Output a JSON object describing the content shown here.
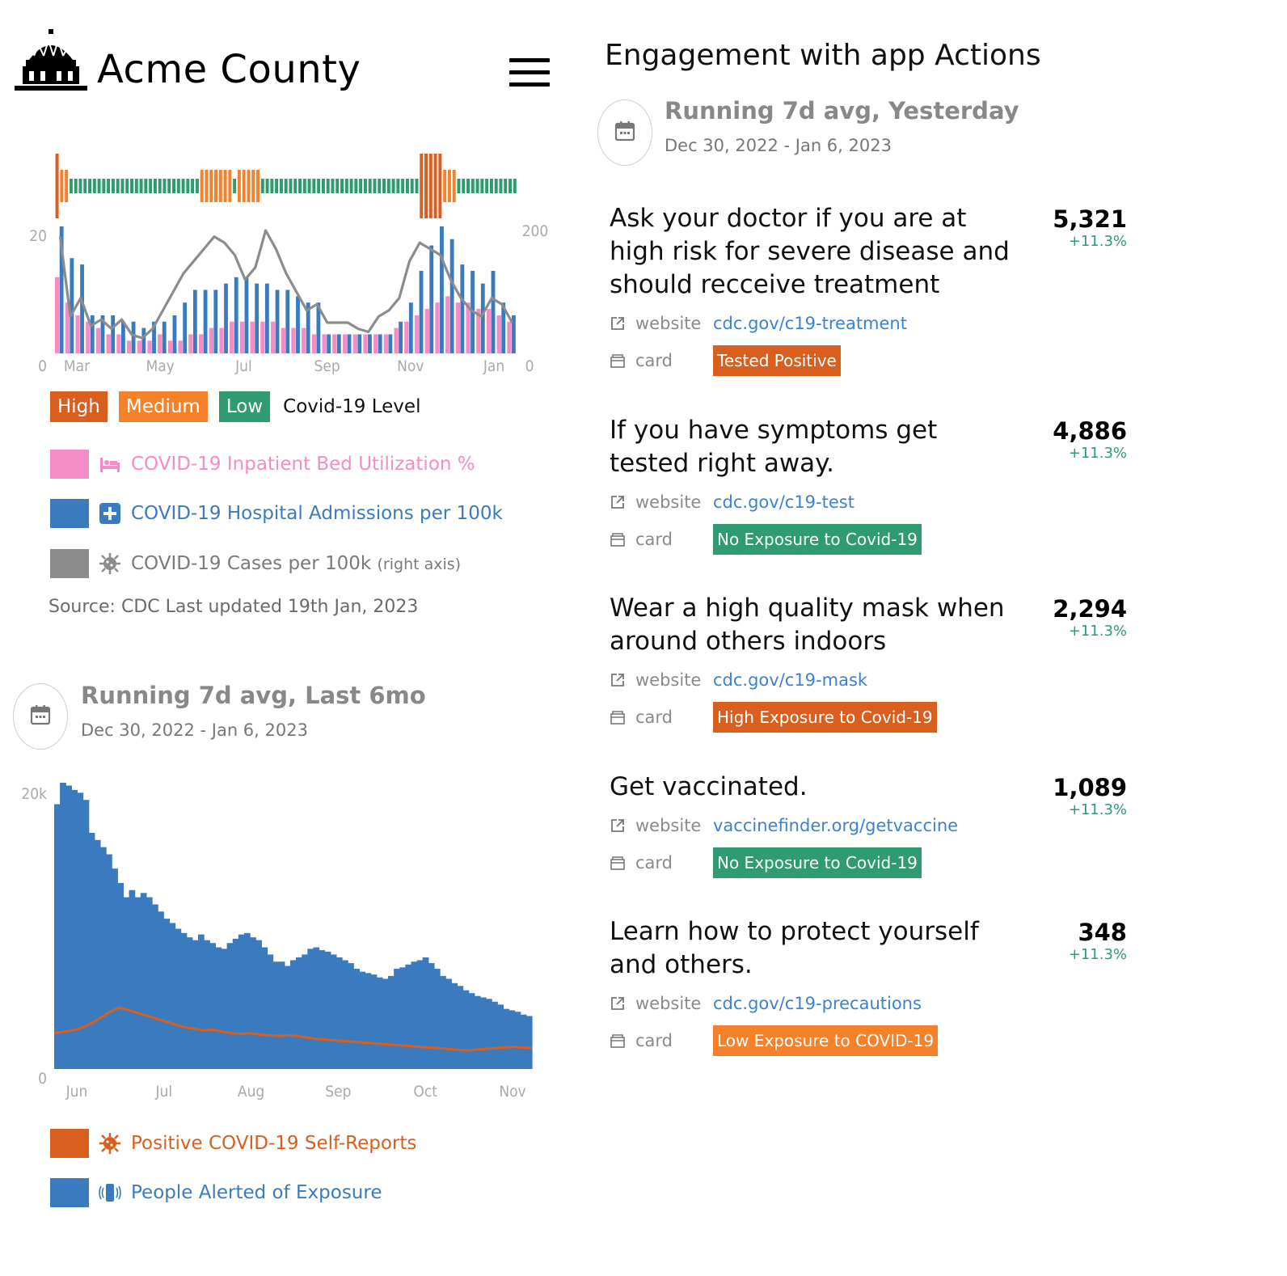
{
  "header": {
    "title": "Acme County",
    "logo_icon": "capitol-building-icon",
    "menu_icon": "hamburger-menu-icon"
  },
  "colors": {
    "high": "#d95f1e",
    "medium": "#f5822a",
    "low": "#2e9b73",
    "inpatient": "#f48cc7",
    "admissions": "#3a7bbf",
    "cases": "#8c8c8c",
    "self_reports": "#d95f1e",
    "alerted": "#3a7bbf",
    "link": "#3b82d6"
  },
  "level_legend": {
    "high": "High",
    "medium": "Medium",
    "low": "Low",
    "caption": "Covid-19 Level"
  },
  "series_legend": {
    "inpatient": {
      "label": "COVID-19 Inpatient Bed Utilization %",
      "icon": "hospital-bed-icon"
    },
    "admissions": {
      "label": "COVID-19 Hospital Admissions per 100k",
      "icon": "medical-cross-icon"
    },
    "cases": {
      "label": "COVID-19 Cases per 100k",
      "suffix": "(right axis)",
      "icon": "virus-icon"
    }
  },
  "source": "Source: CDC Last updated 19th Jan, 2023",
  "left_date_card": {
    "title": "Running 7d avg, Last 6mo",
    "range": "Dec 30, 2022 - Jan 6, 2023",
    "icon": "calendar-icon"
  },
  "bottom_legend": {
    "self_reports": {
      "label": "Positive COVID-19 Self-Reports",
      "icon": "virus-icon"
    },
    "alerted": {
      "label": "People Alerted of Exposure",
      "icon": "phone-vibrate-icon"
    }
  },
  "right": {
    "title": "Engagement with app Actions",
    "date_card": {
      "title": "Running 7d avg, Yesterday",
      "range": "Dec 30, 2022 - Jan 6, 2023",
      "icon": "calendar-icon"
    },
    "website_label": "website",
    "card_label": "card",
    "actions": [
      {
        "title": "Ask your doctor if you are at high risk for severe disease and should recceive treatment",
        "count": "5,321",
        "pct": "+11.3%",
        "link": "cdc.gov/c19-treatment",
        "card": "Tested Positive",
        "card_color": "#d95f1e"
      },
      {
        "title": "If you have symptoms get tested right away.",
        "count": "4,886",
        "pct": "+11.3%",
        "link": "cdc.gov/c19-test",
        "card": "No Exposure to Covid-19",
        "card_color": "#2e9b73"
      },
      {
        "title": "Wear a high quality mask when around others indoors",
        "count": "2,294",
        "pct": "+11.3%",
        "link": "cdc.gov/c19-mask",
        "card": "High Exposure to Covid-19",
        "card_color": "#d95f1e"
      },
      {
        "title": "Get vaccinated.",
        "count": "1,089",
        "pct": "+11.3%",
        "link": "vaccinefinder.org/getvaccine",
        "card": "No Exposure to Covid-19",
        "card_color": "#2e9b73"
      },
      {
        "title": "Learn how to protect yourself and others.",
        "count": "348",
        "pct": "+11.3%",
        "link": "cdc.gov/c19-precautions",
        "card": "Low Exposure to COVID-19",
        "card_color": "#f5822a"
      }
    ]
  },
  "chart_data": [
    {
      "type": "bar",
      "x_tick_labels": [
        "Mar",
        "May",
        "Jul",
        "Sep",
        "Nov",
        "Jan"
      ],
      "y_left": {
        "ticks": [
          "0",
          "20"
        ],
        "range": [
          0,
          20
        ]
      },
      "y_right": {
        "ticks": [
          "0",
          "200"
        ],
        "range": [
          0,
          200
        ]
      },
      "level_strip": [
        "H",
        "M",
        "M",
        "L",
        "L",
        "L",
        "L",
        "L",
        "L",
        "L",
        "L",
        "L",
        "L",
        "L",
        "L",
        "L",
        "L",
        "L",
        "L",
        "L",
        "L",
        "L",
        "L",
        "L",
        "L",
        "L",
        "L",
        "L",
        "L",
        "L",
        "L",
        "M",
        "M",
        "M",
        "M",
        "M",
        "M",
        "M",
        "L",
        "M",
        "M",
        "M",
        "M",
        "M",
        "L",
        "L",
        "L",
        "L",
        "L",
        "L",
        "L",
        "L",
        "L",
        "L",
        "L",
        "L",
        "L",
        "L",
        "L",
        "L",
        "L",
        "L",
        "L",
        "L",
        "L",
        "L",
        "L",
        "L",
        "L",
        "L",
        "L",
        "L",
        "L",
        "L",
        "L",
        "L",
        "L",
        "L",
        "H",
        "H",
        "H",
        "H",
        "H",
        "M",
        "M",
        "M",
        "L",
        "L",
        "L",
        "L",
        "L",
        "L",
        "L",
        "L",
        "L",
        "L",
        "L",
        "L",
        "L"
      ],
      "series": [
        {
          "name": "COVID-19 Inpatient Bed Utilization %",
          "kind": "bar",
          "values": [
            12,
            8,
            6,
            5,
            4,
            3,
            3,
            2,
            2,
            2,
            3,
            2,
            2,
            3,
            3,
            4,
            4,
            5,
            5,
            5,
            5,
            5,
            4,
            4,
            4,
            3,
            3,
            3,
            3,
            3,
            3,
            3,
            3,
            4,
            5,
            6,
            7,
            8,
            9,
            8,
            8,
            7,
            7,
            6,
            5
          ]
        },
        {
          "name": "COVID-19 Hospital Admissions per 100k",
          "kind": "bar",
          "values": [
            20,
            15,
            14,
            6,
            6,
            6,
            5,
            5,
            4,
            5,
            5,
            6,
            8,
            10,
            10,
            10,
            11,
            12,
            12,
            11,
            11,
            10,
            10,
            9,
            8,
            8,
            3,
            3,
            3,
            3,
            3,
            3,
            3,
            5,
            8,
            13,
            17,
            20,
            18,
            14,
            13,
            11,
            13,
            8,
            6
          ]
        },
        {
          "name": "COVID-19 Cases per 100k",
          "kind": "line",
          "axis": "right",
          "values": [
            190,
            60,
            90,
            45,
            55,
            40,
            55,
            30,
            25,
            40,
            70,
            100,
            130,
            150,
            170,
            190,
            180,
            160,
            120,
            140,
            200,
            170,
            130,
            100,
            70,
            80,
            50,
            50,
            50,
            40,
            35,
            60,
            70,
            90,
            150,
            180,
            170,
            160,
            120,
            90,
            70,
            60,
            90,
            80,
            50
          ]
        }
      ]
    },
    {
      "type": "area",
      "x_tick_labels": [
        "Jun",
        "Jul",
        "Aug",
        "Sep",
        "Oct",
        "Nov"
      ],
      "y_ticks": [
        "0",
        "20k"
      ],
      "ylim": [
        0,
        20000
      ],
      "series": [
        {
          "name": "People Alerted of Exposure",
          "kind": "bar",
          "values": [
            18500,
            20000,
            19800,
            19500,
            19300,
            18800,
            16500,
            16000,
            15500,
            15000,
            14000,
            13000,
            12000,
            12500,
            12000,
            12300,
            12000,
            11500,
            11000,
            10500,
            10200,
            9800,
            9500,
            9200,
            9000,
            9400,
            9000,
            8800,
            8500,
            8400,
            8800,
            9100,
            9400,
            9500,
            9200,
            9000,
            8500,
            8000,
            7500,
            7500,
            7200,
            7600,
            7800,
            8000,
            8400,
            8500,
            8300,
            8200,
            8000,
            7800,
            7600,
            7400,
            7000,
            6800,
            6700,
            6600,
            6400,
            6300,
            6500,
            7000,
            7100,
            7300,
            7500,
            7600,
            7800,
            7400,
            7000,
            6500,
            6300,
            6000,
            5800,
            5500,
            5300,
            5100,
            5000,
            4900,
            4700,
            4500,
            4200,
            4100,
            4000,
            3800,
            3700
          ]
        },
        {
          "name": "Positive COVID-19 Self-Reports",
          "kind": "line",
          "values": [
            2500,
            2600,
            2700,
            2900,
            3200,
            3600,
            4000,
            4300,
            4100,
            3900,
            3700,
            3500,
            3300,
            3100,
            2900,
            2800,
            2700,
            2750,
            2600,
            2500,
            2450,
            2500,
            2400,
            2350,
            2300,
            2350,
            2300,
            2200,
            2100,
            2050,
            2000,
            1950,
            1900,
            1850,
            1800,
            1750,
            1700,
            1650,
            1600,
            1550,
            1500,
            1450,
            1400,
            1350,
            1300,
            1350,
            1400,
            1450,
            1500,
            1550,
            1500,
            1450
          ]
        }
      ]
    }
  ]
}
